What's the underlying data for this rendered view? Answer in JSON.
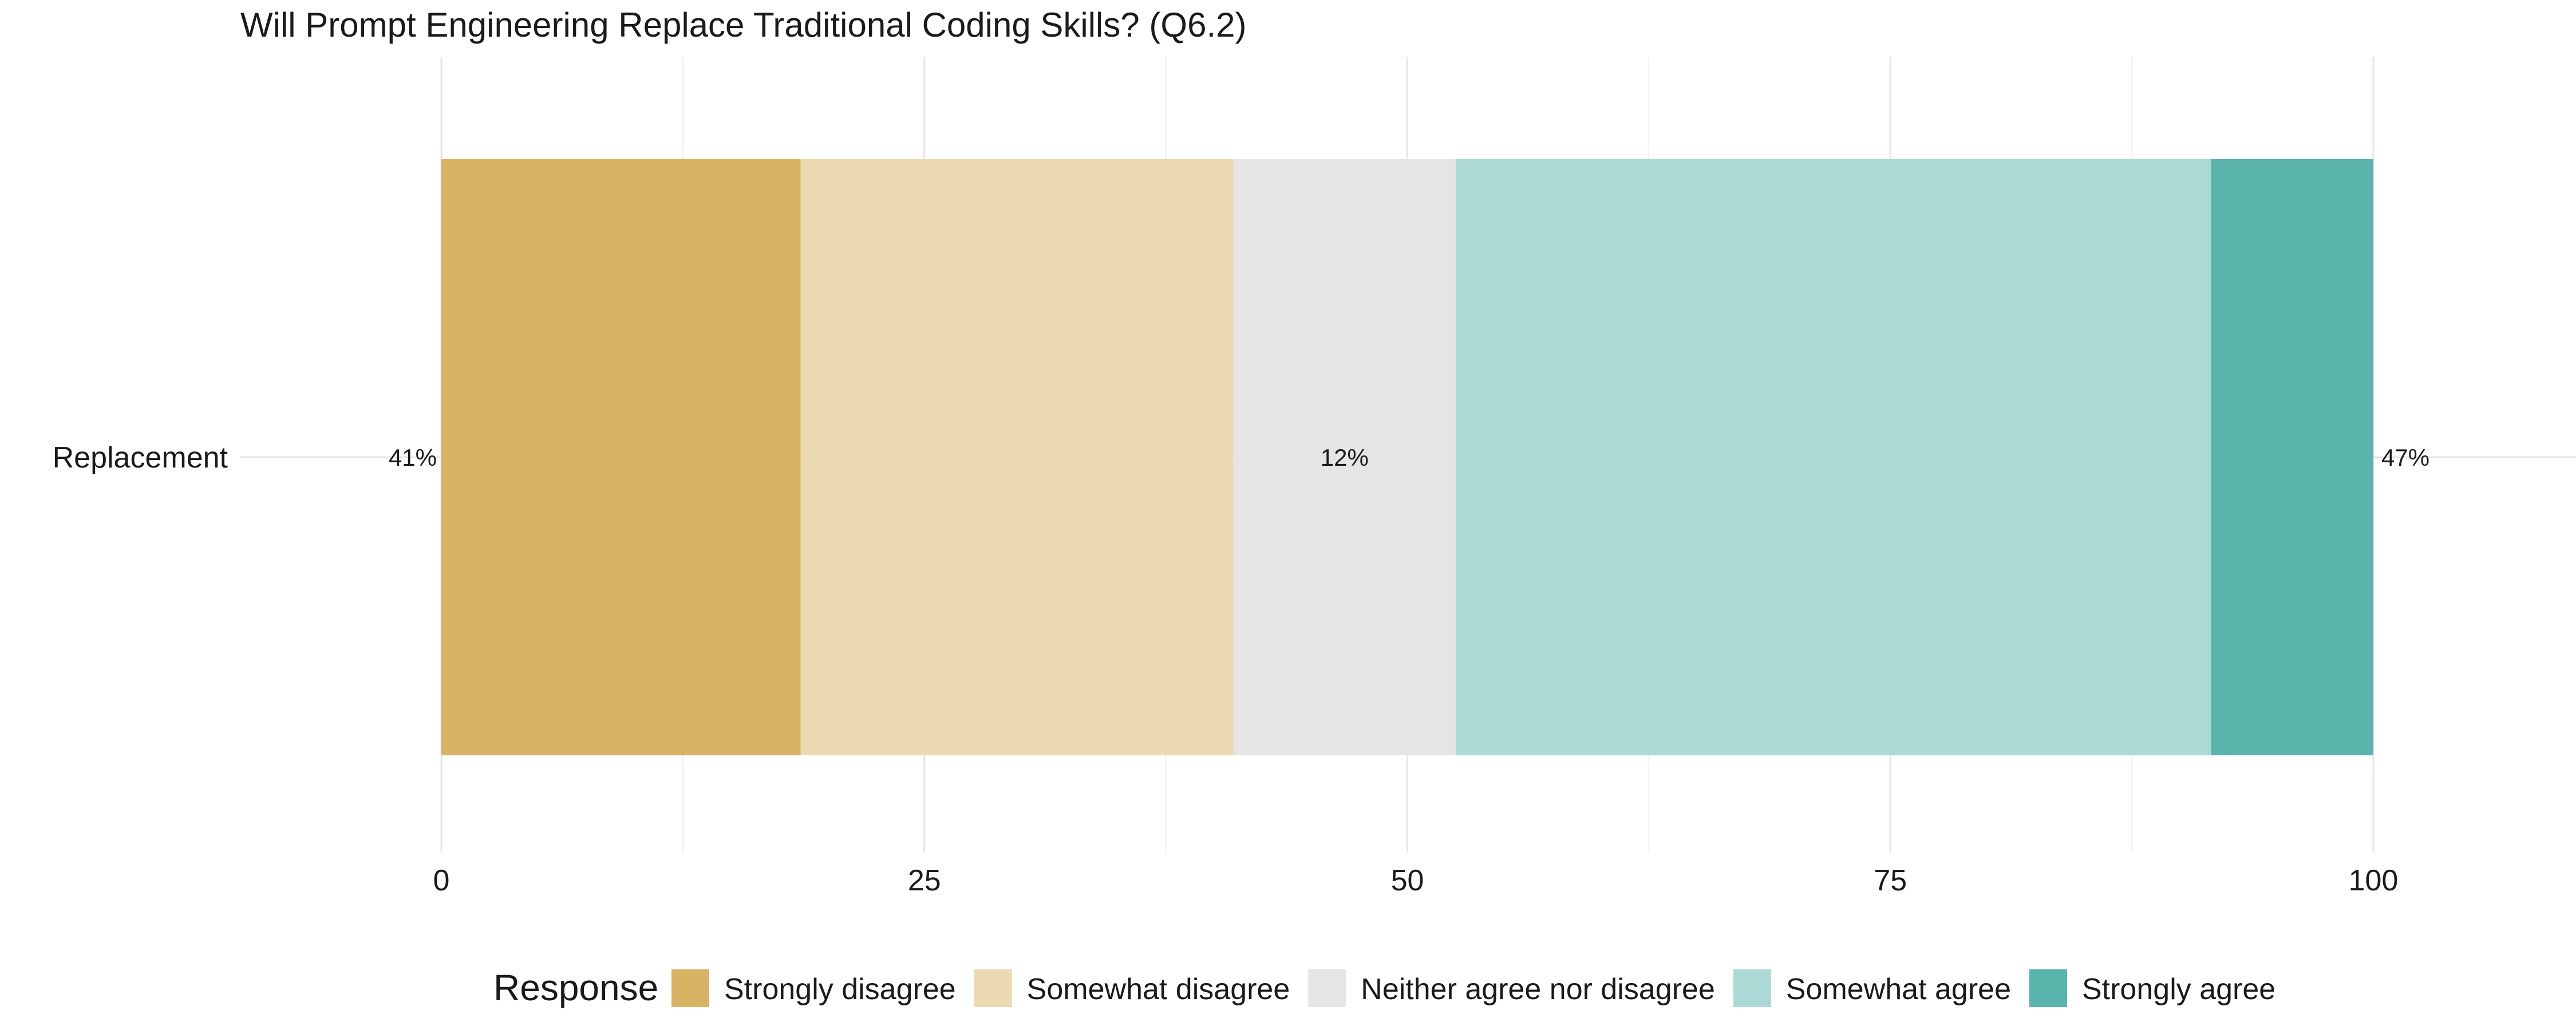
{
  "chart_data": {
    "type": "bar",
    "orientation": "horizontal-stacked",
    "title": "Will Prompt Engineering Replace Traditional Coding Skills? (Q6.2)",
    "categories": [
      "Replacement"
    ],
    "xlim": [
      0,
      100
    ],
    "x_ticks": [
      0,
      25,
      50,
      75,
      100
    ],
    "grid": true,
    "legend": {
      "title": "Response",
      "placement": "bottom"
    },
    "series": [
      {
        "name": "Strongly disagree",
        "values": [
          18.6
        ],
        "color": "#d8b365"
      },
      {
        "name": "Somewhat disagree",
        "values": [
          22.4
        ],
        "color": "#ebdab2"
      },
      {
        "name": "Neither agree nor disagree",
        "values": [
          11.5
        ],
        "color": "#e5e5e5"
      },
      {
        "name": "Somewhat agree",
        "values": [
          39.1
        ],
        "color": "#acd9d5"
      },
      {
        "name": "Strongly agree",
        "values": [
          8.4
        ],
        "color": "#5ab4ac"
      }
    ],
    "annotations": [
      {
        "text": "41%",
        "position": "left"
      },
      {
        "text": "12%",
        "position": "center"
      },
      {
        "text": "47%",
        "position": "right"
      }
    ]
  }
}
